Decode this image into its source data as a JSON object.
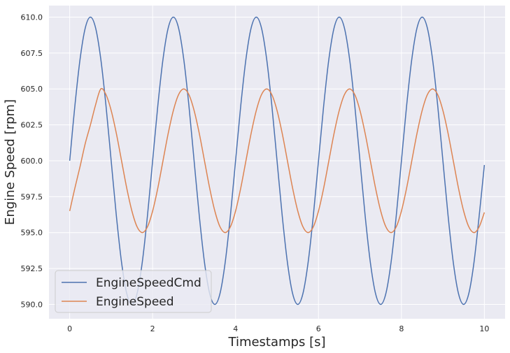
{
  "chart_data": {
    "type": "line",
    "xlabel": "Timestamps [s]",
    "ylabel": "Engine Speed [rpm]",
    "xlim": [
      -0.5,
      10.5
    ],
    "ylim": [
      589.0,
      610.8
    ],
    "x_ticks": [
      0,
      2,
      4,
      6,
      8,
      10
    ],
    "x_tick_labels": [
      "0",
      "2",
      "4",
      "6",
      "8",
      "10"
    ],
    "y_ticks": [
      590.0,
      592.5,
      595.0,
      597.5,
      600.0,
      602.5,
      605.0,
      607.5,
      610.0
    ],
    "y_tick_labels": [
      "590.0",
      "592.5",
      "595.0",
      "597.5",
      "600.0",
      "602.5",
      "605.0",
      "607.5",
      "610.0"
    ],
    "grid": true,
    "legend_position": "lower-left",
    "x": [
      0.0,
      0.125,
      0.25,
      0.375,
      0.5,
      0.625,
      0.75,
      0.875,
      1.0,
      1.125,
      1.25,
      1.375,
      1.5,
      1.625,
      1.75,
      1.875,
      2.0,
      2.125,
      2.25,
      2.375,
      2.5,
      2.625,
      2.75,
      2.875,
      3.0,
      3.125,
      3.25,
      3.375,
      3.5,
      3.625,
      3.75,
      3.875,
      4.0,
      4.125,
      4.25,
      4.375,
      4.5,
      4.625,
      4.75,
      4.875,
      5.0,
      5.125,
      5.25,
      5.375,
      5.5,
      5.625,
      5.75,
      5.875,
      6.0,
      6.125,
      6.25,
      6.375,
      6.5,
      6.625,
      6.75,
      6.875,
      7.0,
      7.125,
      7.25,
      7.375,
      7.5,
      7.625,
      7.75,
      7.875,
      8.0,
      8.125,
      8.25,
      8.375,
      8.5,
      8.625,
      8.75,
      8.875,
      9.0,
      9.125,
      9.25,
      9.375,
      9.5,
      9.625,
      9.75,
      9.875,
      10.0
    ],
    "series": [
      {
        "name": "EngineSpeedCmd",
        "color": "#4c72b0",
        "values": [
          600.0,
          603.83,
          607.07,
          609.24,
          610.0,
          609.24,
          607.07,
          603.83,
          600.0,
          596.17,
          592.93,
          590.76,
          590.0,
          590.76,
          592.93,
          596.17,
          600.0,
          603.83,
          607.07,
          609.24,
          610.0,
          609.24,
          607.07,
          603.83,
          600.0,
          596.17,
          592.93,
          590.76,
          590.0,
          590.76,
          592.93,
          596.17,
          600.0,
          603.83,
          607.07,
          609.24,
          610.0,
          609.24,
          607.07,
          603.83,
          600.0,
          596.17,
          592.93,
          590.76,
          590.0,
          590.76,
          592.93,
          596.17,
          600.0,
          603.83,
          607.07,
          609.24,
          610.0,
          609.24,
          607.07,
          603.83,
          600.0,
          596.17,
          592.93,
          590.76,
          590.0,
          590.76,
          592.93,
          596.17,
          600.0,
          603.83,
          607.07,
          609.24,
          610.0,
          609.24,
          607.07,
          603.83,
          600.0,
          596.17,
          592.93,
          590.76,
          590.0,
          590.76,
          592.93,
          596.17,
          599.7
        ]
      },
      {
        "name": "EngineSpeed",
        "color": "#dd8452",
        "values": [
          596.5,
          598.1,
          599.6,
          601.2,
          602.5,
          603.9,
          605.0,
          604.6,
          603.5,
          601.9,
          600.0,
          598.1,
          596.5,
          595.4,
          595.0,
          595.4,
          596.5,
          598.1,
          600.0,
          601.9,
          603.5,
          604.6,
          605.0,
          604.6,
          603.5,
          601.9,
          600.0,
          598.1,
          596.5,
          595.4,
          595.0,
          595.4,
          596.5,
          598.1,
          600.0,
          601.9,
          603.5,
          604.6,
          605.0,
          604.6,
          603.5,
          601.9,
          600.0,
          598.1,
          596.5,
          595.4,
          595.0,
          595.4,
          596.5,
          598.1,
          600.0,
          601.9,
          603.5,
          604.6,
          605.0,
          604.6,
          603.5,
          601.9,
          600.0,
          598.1,
          596.5,
          595.4,
          595.0,
          595.4,
          596.5,
          598.1,
          600.0,
          601.9,
          603.5,
          604.6,
          605.0,
          604.6,
          603.5,
          601.9,
          600.0,
          598.1,
          596.5,
          595.4,
          595.0,
          595.4,
          596.4
        ]
      }
    ]
  }
}
